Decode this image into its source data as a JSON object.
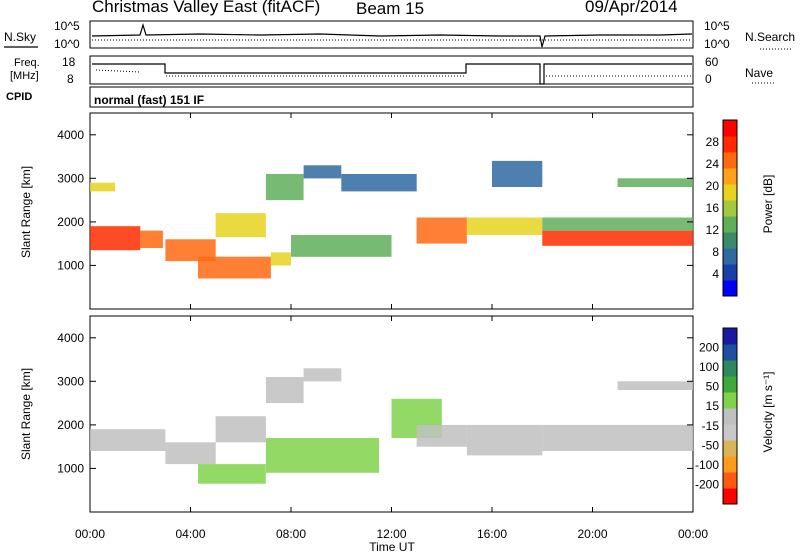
{
  "header": {
    "title": "Christmas Valley East (fitACF)",
    "beam": "Beam 15",
    "date": "09/Apr/2014"
  },
  "top_panels": {
    "nsky_label": "N.Sky",
    "nsky_ticks": [
      "10^5",
      "10^0"
    ],
    "nsearch_label": "N.Search",
    "nsearch_ticks": [
      "10^5",
      "10^0"
    ],
    "freq_label": "Freq.",
    "freq_unit": "[MHz]",
    "freq_ticks": [
      "18",
      "8"
    ],
    "nave_label": "Nave",
    "nave_ticks": [
      "60",
      "0"
    ],
    "cpid_label": "CPID",
    "cpid_text": "normal (fast) 151 IF"
  },
  "xaxis": {
    "label": "Time UT",
    "ticks": [
      "00:00",
      "04:00",
      "08:00",
      "12:00",
      "16:00",
      "20:00",
      "00:00"
    ]
  },
  "colors": {
    "power": [
      "#0000ff",
      "#1a3fa6",
      "#2e6aa0",
      "#3c8a6c",
      "#5fae5a",
      "#a3c93f",
      "#e8d21e",
      "#ffa01a",
      "#ff6a10",
      "#ff2a00",
      "#ff0000"
    ],
    "velocity": [
      "#ff0000",
      "#ff5a10",
      "#ff9a1a",
      "#d9b45a",
      "#c8c8c8",
      "#c0c0c0",
      "#7fd24a",
      "#3faa3a",
      "#2e8a5c",
      "#1e4fa0",
      "#1a1aa0"
    ]
  },
  "chart_data": [
    {
      "type": "heatmap",
      "name": "power",
      "ylabel": "Slant Range [km]",
      "yticks": [
        "4000",
        "3000",
        "2000",
        "1000"
      ],
      "ylim": [
        0,
        4500
      ],
      "xlim_hours": [
        0,
        24
      ],
      "colorbar_label": "Power [dB]",
      "colorbar_ticks": [
        "28",
        "24",
        "20",
        "16",
        "12",
        "8",
        "4"
      ],
      "colorbar_range": [
        0,
        32
      ],
      "bands": [
        {
          "start_h": 0.0,
          "end_h": 2.0,
          "lower_km": 1350,
          "upper_km": 1900,
          "value": 28
        },
        {
          "start_h": 2.0,
          "end_h": 2.9,
          "lower_km": 1400,
          "upper_km": 1800,
          "value": 24
        },
        {
          "start_h": 3.0,
          "end_h": 5.0,
          "lower_km": 1100,
          "upper_km": 1600,
          "value": 24
        },
        {
          "start_h": 5.0,
          "end_h": 7.0,
          "lower_km": 1650,
          "upper_km": 2200,
          "value": 18
        },
        {
          "start_h": 7.0,
          "end_h": 8.5,
          "lower_km": 2500,
          "upper_km": 3100,
          "value": 12
        },
        {
          "start_h": 8.5,
          "end_h": 10.0,
          "lower_km": 3000,
          "upper_km": 3300,
          "value": 8
        },
        {
          "start_h": 4.3,
          "end_h": 7.2,
          "lower_km": 700,
          "upper_km": 1200,
          "value": 26
        },
        {
          "start_h": 7.2,
          "end_h": 8.0,
          "lower_km": 1000,
          "upper_km": 1300,
          "value": 20
        },
        {
          "start_h": 8.0,
          "end_h": 12.0,
          "lower_km": 1200,
          "upper_km": 1700,
          "value": 14
        },
        {
          "start_h": 10.0,
          "end_h": 13.0,
          "lower_km": 2700,
          "upper_km": 3100,
          "value": 6
        },
        {
          "start_h": 13.0,
          "end_h": 15.0,
          "lower_km": 1500,
          "upper_km": 2100,
          "value": 24
        },
        {
          "start_h": 15.0,
          "end_h": 18.0,
          "lower_km": 1700,
          "upper_km": 2100,
          "value": 20
        },
        {
          "start_h": 18.0,
          "end_h": 24.0,
          "lower_km": 1450,
          "upper_km": 1800,
          "value": 28
        },
        {
          "start_h": 18.0,
          "end_h": 24.0,
          "lower_km": 1800,
          "upper_km": 2100,
          "value": 14
        },
        {
          "start_h": 16.0,
          "end_h": 18.0,
          "lower_km": 2800,
          "upper_km": 3400,
          "value": 6
        },
        {
          "start_h": 21.0,
          "end_h": 24.0,
          "lower_km": 2800,
          "upper_km": 3000,
          "value": 14
        },
        {
          "start_h": 0.0,
          "end_h": 1.0,
          "lower_km": 2700,
          "upper_km": 2900,
          "value": 18
        }
      ]
    },
    {
      "type": "heatmap",
      "name": "velocity",
      "ylabel": "Slant Range [km]",
      "yticks": [
        "4000",
        "3000",
        "2000",
        "1000"
      ],
      "ylim": [
        0,
        4500
      ],
      "xlim_hours": [
        0,
        24
      ],
      "colorbar_label": "Velocity [m s⁻¹]",
      "colorbar_ticks": [
        "200",
        "100",
        "50",
        "15",
        "-15",
        "-50",
        "-100",
        "-200"
      ],
      "colorbar_range": [
        -250,
        250
      ],
      "bands": [
        {
          "start_h": 0.0,
          "end_h": 3.0,
          "lower_km": 1400,
          "upper_km": 1900,
          "value": 0
        },
        {
          "start_h": 3.0,
          "end_h": 5.0,
          "lower_km": 1100,
          "upper_km": 1600,
          "value": 0
        },
        {
          "start_h": 5.0,
          "end_h": 7.0,
          "lower_km": 1600,
          "upper_km": 2200,
          "value": 0
        },
        {
          "start_h": 7.0,
          "end_h": 8.5,
          "lower_km": 2500,
          "upper_km": 3100,
          "value": 0
        },
        {
          "start_h": 4.3,
          "end_h": 7.0,
          "lower_km": 650,
          "upper_km": 1100,
          "value": 40
        },
        {
          "start_h": 7.0,
          "end_h": 11.5,
          "lower_km": 900,
          "upper_km": 1700,
          "value": 60
        },
        {
          "start_h": 12.0,
          "end_h": 14.0,
          "lower_km": 1700,
          "upper_km": 2600,
          "value": 40
        },
        {
          "start_h": 13.0,
          "end_h": 15.0,
          "lower_km": 1500,
          "upper_km": 2000,
          "value": 0
        },
        {
          "start_h": 15.0,
          "end_h": 18.0,
          "lower_km": 1300,
          "upper_km": 2000,
          "value": 0
        },
        {
          "start_h": 18.0,
          "end_h": 24.0,
          "lower_km": 1400,
          "upper_km": 2000,
          "value": 0
        },
        {
          "start_h": 21.0,
          "end_h": 24.0,
          "lower_km": 2800,
          "upper_km": 3000,
          "value": 0
        },
        {
          "start_h": 8.5,
          "end_h": 10.0,
          "lower_km": 3000,
          "upper_km": 3300,
          "value": 0
        }
      ]
    }
  ]
}
